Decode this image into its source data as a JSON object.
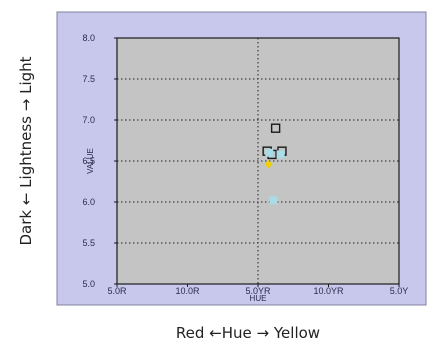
{
  "outer_labels": {
    "horizontal": "Red ←Hue → Yellow",
    "vertical": "Dark ← Lightness → Light"
  },
  "chart_data": {
    "type": "scatter",
    "title": "",
    "xlabel": "HUE",
    "ylabel": "VALUE",
    "x_tick_labels": [
      "5.0R",
      "10.0R",
      "5.0YR",
      "10.0YR",
      "5.0Y"
    ],
    "y_tick_labels": [
      "8.0",
      "7.5",
      "7.0",
      "6.5",
      "6.0",
      "5.5",
      "5.0"
    ],
    "xlim": [
      0,
      4
    ],
    "ylim": [
      5.0,
      8.0
    ],
    "x_unit_note": "x values are positions on the hue scale: 0 = 5.0R, 1 = 10.0R, 2 = 5.0YR, 3 = 10.0YR, 4 = 5.0Y",
    "grid": true,
    "points": [
      {
        "x": 2.25,
        "y": 6.9,
        "marker": "square-open",
        "color": "#1a1a1a"
      },
      {
        "x": 2.13,
        "y": 6.62,
        "marker": "square-open",
        "color": "#1a1a1a"
      },
      {
        "x": 2.2,
        "y": 6.58,
        "marker": "square-open",
        "color": "#1a1a1a"
      },
      {
        "x": 2.34,
        "y": 6.62,
        "marker": "square-open",
        "color": "#1a1a1a"
      },
      {
        "x": 2.32,
        "y": 6.58,
        "marker": "square",
        "color": "#a8dce6"
      },
      {
        "x": 2.16,
        "y": 6.6,
        "marker": "square",
        "color": "#a8dce6"
      },
      {
        "x": 2.15,
        "y": 6.46,
        "marker": "diamond",
        "color": "#f0d000"
      },
      {
        "x": 2.22,
        "y": 6.02,
        "marker": "square",
        "color": "#a8dce6"
      }
    ],
    "colors": {
      "frame": "#c8c8ec",
      "plot_area": "#c4c4c4",
      "grid": "#222222"
    }
  }
}
